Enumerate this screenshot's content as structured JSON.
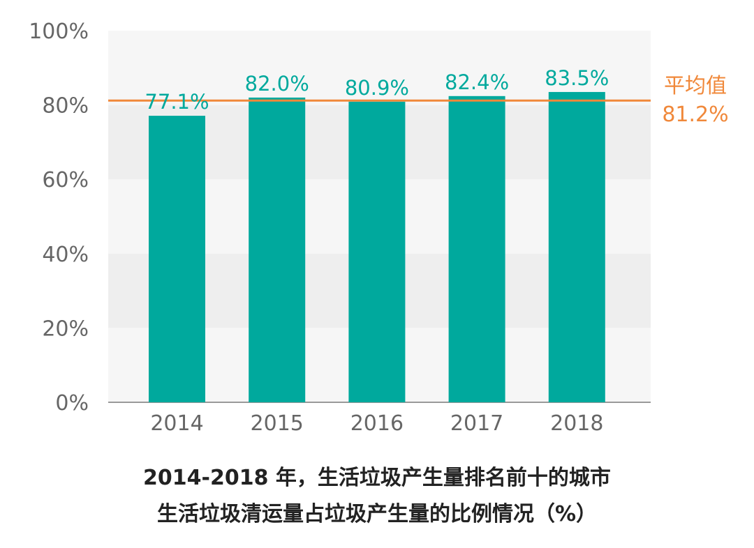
{
  "chart_data": {
    "type": "bar",
    "categories": [
      "2014",
      "2015",
      "2016",
      "2017",
      "2018"
    ],
    "values": [
      77.1,
      82.0,
      80.9,
      82.4,
      83.5
    ],
    "data_labels": [
      "77.1%",
      "82.0%",
      "80.9%",
      "82.4%",
      "83.5%"
    ],
    "ylim": [
      0,
      100
    ],
    "yticks": [
      0,
      20,
      40,
      60,
      80,
      100
    ],
    "ytick_labels": [
      "0%",
      "20%",
      "40%",
      "60%",
      "80%",
      "100%"
    ],
    "reference_line": {
      "value": 81.2,
      "label": "平均值",
      "value_label": "81.2%"
    },
    "title_lines": [
      "2014-2018 年，生活垃圾产生量排名前十的城市",
      "生活垃圾清运量占垃圾产生量的比例情况（%）"
    ],
    "grid": "alternating horizontal bands",
    "colors": {
      "bar": "#00a99d",
      "label": "#00a99d",
      "reference": "#f0883a",
      "band_light": "#f6f6f6",
      "band_dark": "#eeeeee",
      "axis_text": "#666666"
    }
  }
}
